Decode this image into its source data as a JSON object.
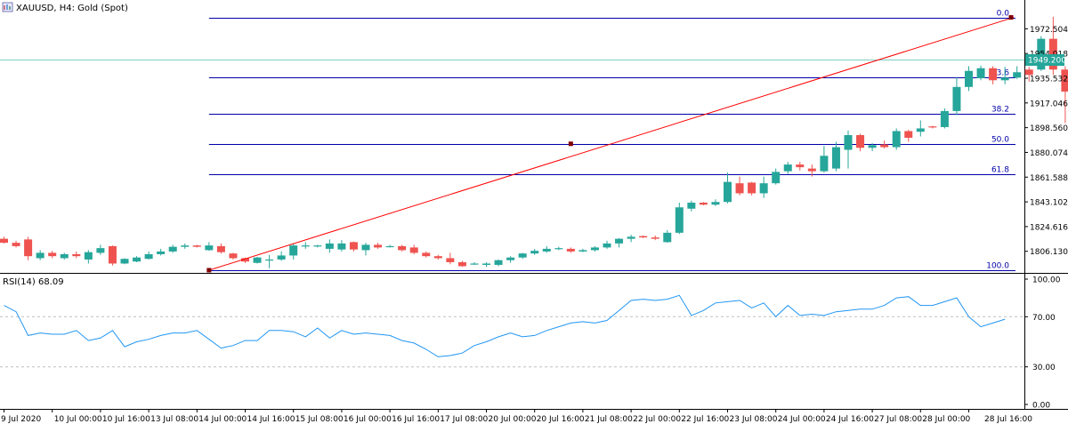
{
  "header": {
    "symbol": "XAUUSD",
    "timeframe": "H4",
    "description": "Gold (Spot)",
    "title": "XAUUSD, H4:  Gold (Spot)"
  },
  "indicator": {
    "label": "RSI(14) 68.09",
    "name": "RSI(14)",
    "value": 68.09
  },
  "current_price_label": "1949.200",
  "colors": {
    "bull": "#26a69a",
    "bear": "#ef5350",
    "fib": "#0000aa",
    "trendline": "#ff0000",
    "rsi": "#2196f3",
    "price_line": "#7fcfc4",
    "grid_dash": "#c0c0c0"
  },
  "chart_data": [
    {
      "type": "candlestick",
      "title": "XAUUSD, H4:  Gold (Spot)",
      "ylim": [
        1790,
        1994
      ],
      "y_ticks": [
        "1972.504",
        "1954.018",
        "1935.532",
        "1917.046",
        "1898.560",
        "1880.074",
        "1861.588",
        "1843.102",
        "1824.616",
        "1806.130"
      ],
      "x_ticks": [
        "9 Jul 2020",
        "10 Jul 00:00",
        "10 Jul 16:00",
        "13 Jul 08:00",
        "14 Jul 00:00",
        "14 Jul 16:00",
        "15 Jul 08:00",
        "16 Jul 00:00",
        "16 Jul 16:00",
        "17 Jul 08:00",
        "20 Jul 00:00",
        "20 Jul 16:00",
        "21 Jul 08:00",
        "22 Jul 00:00",
        "22 Jul 16:00",
        "23 Jul 08:00",
        "24 Jul 00:00",
        "24 Jul 16:00",
        "27 Jul 08:00",
        "28 Jul 00:00",
        "28 Jul 16:00"
      ],
      "candles": [
        [
          1815.5,
          1817.0,
          1812.0,
          1812.5
        ],
        [
          1812.5,
          1814.0,
          1809.0,
          1810.0
        ],
        [
          1815.0,
          1817.0,
          1799.5,
          1802.5
        ],
        [
          1801.0,
          1807.0,
          1799.5,
          1805.0
        ],
        [
          1805.0,
          1806.5,
          1801.0,
          1802.5
        ],
        [
          1801.0,
          1805.0,
          1800.0,
          1804.0
        ],
        [
          1804.0,
          1806.0,
          1801.0,
          1802.5
        ],
        [
          1800.0,
          1807.0,
          1797.0,
          1805.5
        ],
        [
          1805.0,
          1811.0,
          1803.5,
          1808.5
        ],
        [
          1810.0,
          1810.5,
          1795.5,
          1797.0
        ],
        [
          1797.0,
          1801.0,
          1796.5,
          1800.5
        ],
        [
          1798.5,
          1802.5,
          1798.0,
          1801.5
        ],
        [
          1800.5,
          1806.0,
          1800.0,
          1804.0
        ],
        [
          1804.0,
          1808.0,
          1803.0,
          1806.0
        ],
        [
          1806.0,
          1811.0,
          1805.0,
          1809.5
        ],
        [
          1809.5,
          1812.0,
          1808.0,
          1810.5
        ],
        [
          1810.5,
          1811.0,
          1809.0,
          1809.5
        ],
        [
          1807.0,
          1813.0,
          1806.5,
          1810.5
        ],
        [
          1810.0,
          1812.0,
          1804.5,
          1805.5
        ],
        [
          1804.5,
          1805.0,
          1800.0,
          1801.0
        ],
        [
          1801.0,
          1801.5,
          1797.5,
          1798.5
        ],
        [
          1797.5,
          1802.0,
          1797.0,
          1801.5
        ],
        [
          1799.5,
          1803.5,
          1793.5,
          1800.0
        ],
        [
          1800.0,
          1806.0,
          1799.0,
          1803.0
        ],
        [
          1803.0,
          1812.0,
          1800.0,
          1810.5
        ],
        [
          1810.5,
          1813.0,
          1808.0,
          1810.5
        ],
        [
          1810.5,
          1811.0,
          1809.0,
          1810.5
        ],
        [
          1808.0,
          1815.0,
          1805.0,
          1812.0
        ],
        [
          1807.5,
          1814.5,
          1806.0,
          1812.0
        ],
        [
          1813.0,
          1813.5,
          1806.0,
          1807.5
        ],
        [
          1807.0,
          1812.5,
          1803.0,
          1811.0
        ],
        [
          1811.0,
          1812.5,
          1808.0,
          1809.0
        ],
        [
          1810.0,
          1811.0,
          1809.0,
          1810.0
        ],
        [
          1810.0,
          1811.0,
          1806.0,
          1807.0
        ],
        [
          1809.0,
          1811.0,
          1804.0,
          1805.0
        ],
        [
          1805.0,
          1806.0,
          1801.5,
          1802.5
        ],
        [
          1802.5,
          1803.5,
          1800.0,
          1801.0
        ],
        [
          1801.0,
          1805.0,
          1796.5,
          1798.0
        ],
        [
          1798.0,
          1799.0,
          1794.5,
          1795.0
        ],
        [
          1797.0,
          1798.0,
          1796.0,
          1797.0
        ],
        [
          1796.0,
          1798.0,
          1794.5,
          1797.0
        ],
        [
          1796.0,
          1800.0,
          1795.0,
          1799.5
        ],
        [
          1799.5,
          1802.5,
          1797.5,
          1801.5
        ],
        [
          1801.5,
          1805.0,
          1800.5,
          1804.5
        ],
        [
          1804.5,
          1808.0,
          1803.5,
          1806.5
        ],
        [
          1806.0,
          1810.0,
          1805.0,
          1808.0
        ],
        [
          1808.0,
          1809.5,
          1807.0,
          1808.5
        ],
        [
          1808.0,
          1809.0,
          1805.0,
          1806.0
        ],
        [
          1806.0,
          1808.0,
          1805.5,
          1807.0
        ],
        [
          1807.0,
          1810.0,
          1806.0,
          1809.0
        ],
        [
          1809.0,
          1814.0,
          1808.0,
          1812.0
        ],
        [
          1812.0,
          1816.0,
          1809.0,
          1815.5
        ],
        [
          1815.5,
          1818.5,
          1813.0,
          1817.0
        ],
        [
          1817.5,
          1818.0,
          1816.0,
          1816.5
        ],
        [
          1816.5,
          1818.0,
          1814.5,
          1815.5
        ],
        [
          1813.0,
          1822.0,
          1812.5,
          1820.0
        ],
        [
          1820.0,
          1842.5,
          1819.0,
          1839.0
        ],
        [
          1838.0,
          1844.0,
          1836.0,
          1842.5
        ],
        [
          1842.5,
          1843.0,
          1840.5,
          1841.0
        ],
        [
          1841.0,
          1845.0,
          1840.0,
          1843.0
        ],
        [
          1843.0,
          1865.0,
          1842.0,
          1858.0
        ],
        [
          1857.0,
          1862.0,
          1848.0,
          1849.5
        ],
        [
          1857.5,
          1858.0,
          1848.0,
          1849.5
        ],
        [
          1849.5,
          1862.0,
          1846.0,
          1857.0
        ],
        [
          1857.0,
          1868.0,
          1856.0,
          1865.5
        ],
        [
          1866.0,
          1873.0,
          1864.0,
          1871.0
        ],
        [
          1871.0,
          1873.0,
          1866.5,
          1869.0
        ],
        [
          1868.0,
          1871.0,
          1862.0,
          1866.0
        ],
        [
          1866.0,
          1885.0,
          1865.0,
          1877.5
        ],
        [
          1868.0,
          1888.0,
          1866.0,
          1884.0
        ],
        [
          1882.0,
          1896.5,
          1868.0,
          1893.0
        ],
        [
          1893.0,
          1894.0,
          1881.0,
          1883.5
        ],
        [
          1883.5,
          1887.0,
          1881.0,
          1885.5
        ],
        [
          1886.0,
          1889.0,
          1883.0,
          1884.0
        ],
        [
          1884.0,
          1898.0,
          1882.0,
          1896.0
        ],
        [
          1896.0,
          1897.0,
          1888.0,
          1891.0
        ],
        [
          1895.5,
          1904.0,
          1892.0,
          1898.0
        ],
        [
          1899.5,
          1900.0,
          1898.0,
          1899.0
        ],
        [
          1899.0,
          1913.0,
          1898.0,
          1911.0
        ],
        [
          1911.0,
          1936.0,
          1908.0,
          1929.0
        ],
        [
          1929.0,
          1944.5,
          1926.0,
          1941.0
        ],
        [
          1935.5,
          1945.0,
          1934.0,
          1943.0
        ],
        [
          1943.0,
          1944.5,
          1931.0,
          1934.0
        ],
        [
          1934.0,
          1944.0,
          1931.0,
          1936.0
        ],
        [
          1936.0,
          1944.5,
          1935.0,
          1940.0
        ],
        [
          1942.0,
          1944.0,
          1933.0,
          1938.0
        ],
        [
          1942.0,
          1967.0,
          1941.0,
          1965.0
        ],
        [
          1965.0,
          1981.5,
          1938.0,
          1942.0
        ],
        [
          1942.0,
          1944.5,
          1902.0,
          1925.5
        ],
        [
          1930.0,
          1942.0,
          1920.0,
          1939.0
        ],
        [
          1939.0,
          1950.0,
          1927.0,
          1949.0
        ]
      ],
      "fibonacci_levels": [
        {
          "label": "0.0",
          "price": 1981.0
        },
        {
          "label": "23.6",
          "price": 1936.0
        },
        {
          "label": "38.2",
          "price": 1909.0
        },
        {
          "label": "50.0",
          "price": 1886.5
        },
        {
          "label": "61.8",
          "price": 1864.0
        },
        {
          "label": "100.0",
          "price": 1792.0
        }
      ],
      "trendline": {
        "start": {
          "candle": 17,
          "price": 1792.0
        },
        "mid": {
          "candle": 47,
          "price": 1886.5
        },
        "end": {
          "candle": 78,
          "price": 1981.0
        }
      },
      "current_price": 1949.2
    },
    {
      "type": "line",
      "title": "RSI(14) 68.09",
      "ylim": [
        0,
        100
      ],
      "y_ticks": [
        "100.00",
        "70.00",
        "30.00",
        "0.00"
      ],
      "levels": [
        70,
        30
      ],
      "series": [
        {
          "name": "RSI(14)",
          "values": [
            79,
            74,
            55,
            57,
            56,
            56,
            59,
            51,
            53,
            59,
            46,
            50,
            52,
            55,
            57,
            57,
            59,
            52,
            45,
            47,
            51,
            51,
            59,
            59,
            58,
            54,
            61,
            53,
            59,
            56,
            57,
            56,
            55,
            51,
            49,
            44,
            38,
            39,
            41,
            47,
            50,
            54,
            57,
            54,
            55,
            59,
            62,
            65,
            66,
            65,
            67,
            75,
            83,
            84,
            83,
            84,
            87,
            71,
            75,
            81,
            82,
            83,
            77,
            81,
            70,
            79,
            71,
            72,
            71,
            74,
            75,
            76,
            76,
            79,
            85,
            86,
            79,
            79,
            82,
            85,
            70,
            62,
            65,
            68
          ]
        }
      ]
    }
  ]
}
